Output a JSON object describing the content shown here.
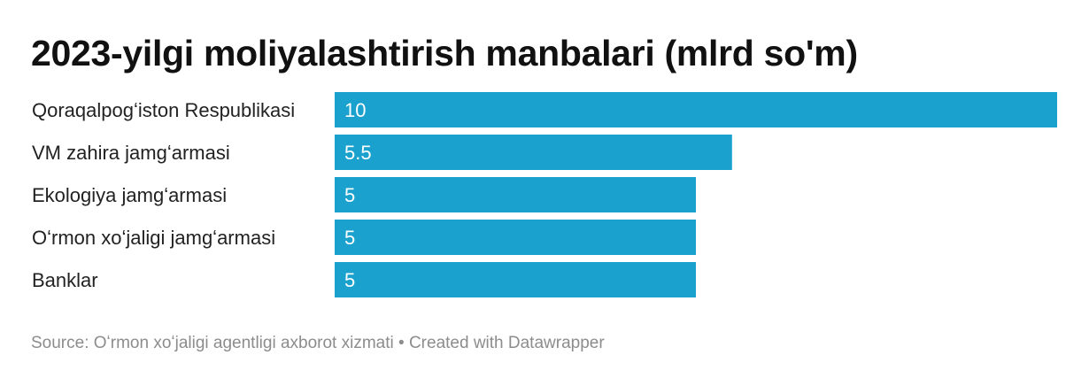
{
  "chart_data": {
    "type": "bar",
    "orientation": "horizontal",
    "title": "2023-yilgi moliyalashtirish manbalari (mlrd so'm)",
    "categories": [
      "Qoraqalpogʻiston Respublikasi",
      "VM zahira jamgʻarmasi",
      "Ekologiya jamgʻarmasi",
      "Oʻrmon xoʻjaligi jamgʻarmasi",
      "Banklar"
    ],
    "values": [
      10,
      5.5,
      5,
      5,
      5
    ],
    "value_labels": [
      "10",
      "5.5",
      "5",
      "5",
      "5"
    ],
    "xlim": [
      0,
      10
    ],
    "grid": false,
    "legend": "none",
    "bar_color": "#1aa1cd"
  },
  "footer": {
    "source": "Source: Oʻrmon xoʻjaligi agentligi axborot xizmati",
    "separator": "•",
    "credit": "Created with Datawrapper"
  }
}
